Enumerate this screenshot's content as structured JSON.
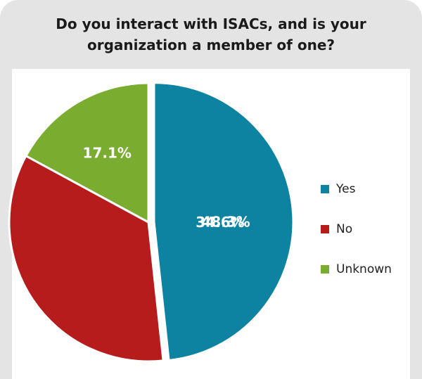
{
  "title": "Do you interact with ISACs, and is your organization a member of one?",
  "chart_data": {
    "type": "pie",
    "title": "Do you interact with ISACs, and is your organization a member of one?",
    "categories": [
      "Yes",
      "No",
      "Unknown"
    ],
    "values": [
      48.3,
      34.6,
      17.1
    ],
    "value_labels": [
      "48.3%",
      "34.6%",
      "17.1%"
    ],
    "colors": [
      "#0e83a1",
      "#b71c1c",
      "#7aac2f"
    ],
    "exploded": "Yes",
    "legend_position": "right"
  }
}
